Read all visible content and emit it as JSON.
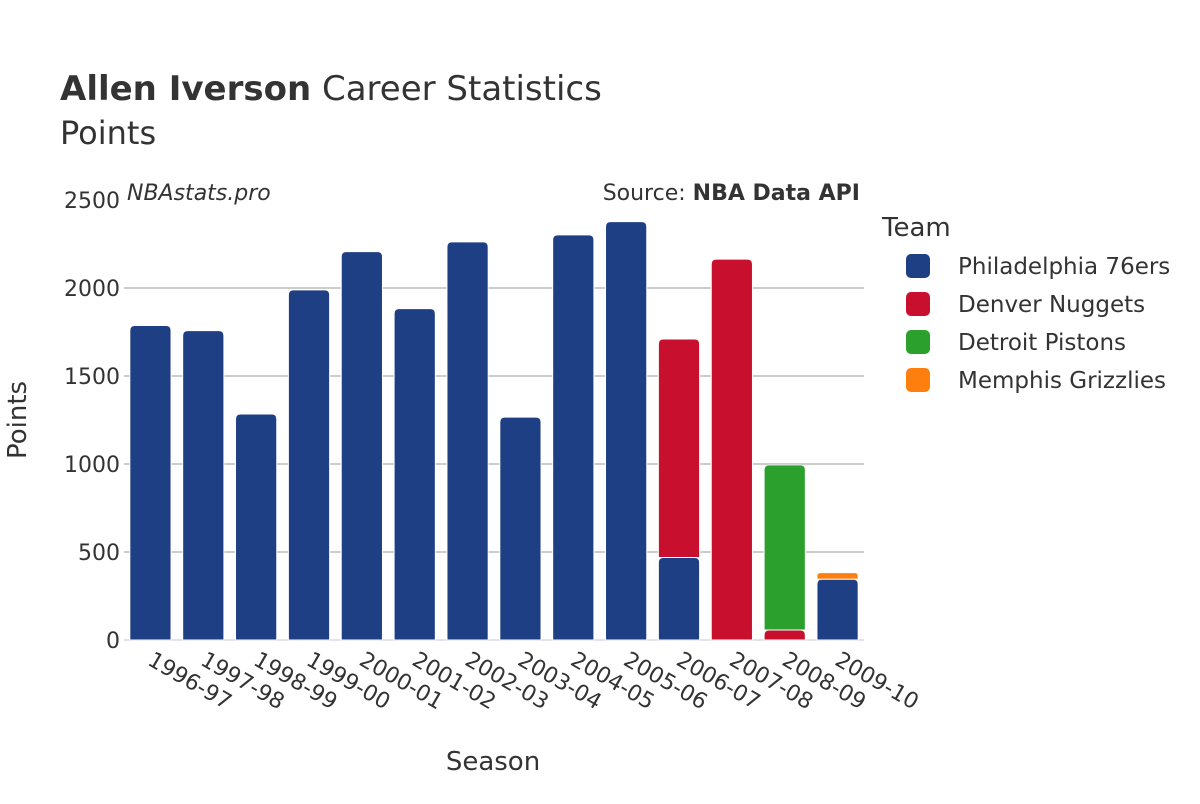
{
  "chart_data": {
    "type": "bar",
    "stacked": true,
    "title_bold": "Allen Iverson",
    "title_rest": " Career Statistics",
    "subtitle": "Points",
    "watermark": "NBAstats.pro",
    "source_prefix": "Source: ",
    "source_name": "NBA Data API",
    "xlabel": "Season",
    "ylabel": "Points",
    "ylim": [
      0,
      2500
    ],
    "yticks": [
      0,
      500,
      1000,
      1500,
      2000,
      2500
    ],
    "grid": true,
    "legend_title": "Team",
    "legend_position": "right",
    "categories": [
      "1996-97",
      "1997-98",
      "1998-99",
      "1999-00",
      "2000-01",
      "2001-02",
      "2002-03",
      "2003-04",
      "2004-05",
      "2005-06",
      "2006-07",
      "2007-08",
      "2008-09",
      "2009-10"
    ],
    "series": [
      {
        "name": "Philadelphia 76ers",
        "color": "#1f3f85",
        "values": [
          1787,
          1758,
          1284,
          1989,
          2207,
          1883,
          2262,
          1266,
          2302,
          2377,
          469,
          0,
          0,
          346
        ]
      },
      {
        "name": "Denver Nuggets",
        "color": "#c8102e",
        "values": [
          0,
          0,
          0,
          0,
          0,
          0,
          0,
          0,
          0,
          0,
          1241,
          2164,
          57,
          0
        ]
      },
      {
        "name": "Detroit Pistons",
        "color": "#2ca02c",
        "values": [
          0,
          0,
          0,
          0,
          0,
          0,
          0,
          0,
          0,
          0,
          0,
          0,
          938,
          0
        ]
      },
      {
        "name": "Memphis Grizzlies",
        "color": "#ff7f0e",
        "values": [
          0,
          0,
          0,
          0,
          0,
          0,
          0,
          0,
          0,
          0,
          0,
          0,
          0,
          37
        ]
      }
    ]
  }
}
